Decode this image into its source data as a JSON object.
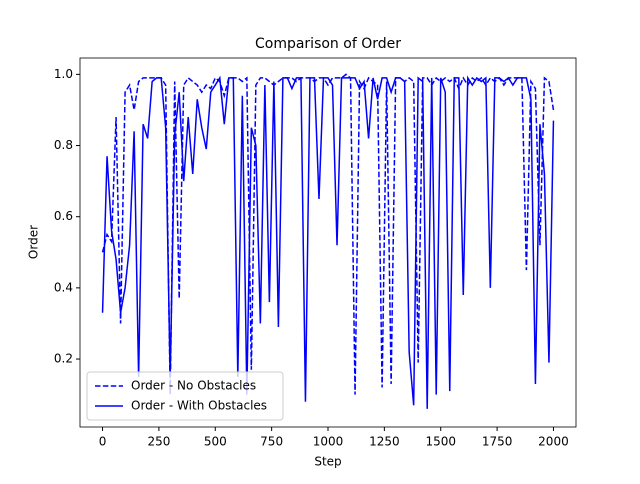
{
  "chart_data": {
    "type": "line",
    "title": "Comparison of Order",
    "x_label": "Step",
    "y_label": "Order",
    "x": [
      0,
      20,
      40,
      60,
      80,
      100,
      120,
      140,
      160,
      180,
      200,
      220,
      240,
      260,
      280,
      300,
      320,
      340,
      360,
      380,
      400,
      420,
      440,
      460,
      480,
      500,
      520,
      540,
      560,
      580,
      600,
      620,
      640,
      660,
      680,
      700,
      720,
      740,
      760,
      780,
      800,
      820,
      840,
      860,
      880,
      900,
      920,
      940,
      960,
      980,
      1000,
      1020,
      1040,
      1060,
      1080,
      1100,
      1120,
      1140,
      1160,
      1180,
      1200,
      1220,
      1240,
      1260,
      1280,
      1300,
      1320,
      1340,
      1360,
      1380,
      1400,
      1420,
      1440,
      1460,
      1480,
      1500,
      1520,
      1540,
      1560,
      1580,
      1600,
      1620,
      1640,
      1660,
      1680,
      1700,
      1720,
      1740,
      1760,
      1780,
      1800,
      1820,
      1840,
      1860,
      1880,
      1900,
      1920,
      1940,
      1960,
      1980,
      2000
    ],
    "series": [
      {
        "name": "Order - No Obstacles",
        "color": "#0000ff",
        "dash": true,
        "values": [
          0.5,
          0.55,
          0.53,
          0.88,
          0.3,
          0.95,
          0.97,
          0.9,
          0.98,
          0.99,
          0.99,
          0.99,
          0.99,
          0.99,
          0.97,
          0.1,
          0.98,
          0.37,
          0.97,
          0.99,
          0.98,
          0.97,
          0.95,
          0.97,
          0.96,
          0.99,
          0.98,
          0.94,
          0.99,
          0.99,
          0.99,
          0.98,
          0.99,
          0.17,
          0.97,
          0.99,
          0.99,
          0.98,
          0.97,
          0.98,
          0.99,
          0.99,
          0.99,
          0.98,
          0.99,
          0.99,
          0.99,
          0.98,
          0.99,
          0.99,
          0.97,
          0.99,
          0.99,
          0.99,
          1.0,
          0.99,
          0.1,
          0.98,
          0.96,
          0.99,
          0.98,
          0.97,
          0.12,
          0.98,
          0.13,
          0.99,
          0.99,
          0.98,
          0.99,
          0.98,
          0.19,
          0.99,
          0.99,
          0.97,
          0.99,
          0.98,
          0.99,
          0.98,
          0.99,
          0.96,
          0.99,
          0.97,
          0.99,
          0.98,
          0.99,
          0.97,
          0.99,
          0.98,
          0.99,
          0.97,
          0.99,
          0.99,
          0.99,
          0.99,
          0.45,
          0.98,
          0.96,
          0.52,
          0.99,
          0.98,
          0.9
        ]
      },
      {
        "name": "Order - With Obstacles",
        "color": "#0000ff",
        "dash": false,
        "values": [
          0.33,
          0.77,
          0.56,
          0.48,
          0.33,
          0.4,
          0.52,
          0.84,
          0.15,
          0.86,
          0.82,
          0.98,
          0.99,
          0.99,
          0.85,
          0.15,
          0.83,
          0.95,
          0.7,
          0.88,
          0.72,
          0.93,
          0.85,
          0.79,
          0.95,
          0.97,
          0.99,
          0.86,
          0.99,
          0.99,
          0.15,
          0.94,
          0.1,
          0.85,
          0.8,
          0.3,
          0.97,
          0.36,
          0.98,
          0.29,
          0.99,
          0.99,
          0.96,
          0.99,
          0.99,
          0.08,
          0.99,
          0.99,
          0.65,
          0.99,
          0.99,
          0.97,
          0.52,
          0.99,
          0.99,
          0.99,
          0.99,
          0.96,
          0.98,
          0.82,
          0.99,
          0.93,
          0.99,
          0.99,
          0.95,
          0.99,
          0.99,
          0.98,
          0.22,
          0.07,
          0.99,
          0.98,
          0.06,
          0.99,
          0.1,
          0.99,
          0.95,
          0.11,
          0.99,
          0.99,
          0.38,
          0.99,
          0.97,
          0.99,
          0.98,
          0.99,
          0.4,
          0.99,
          0.99,
          0.98,
          0.99,
          0.97,
          0.99,
          0.99,
          0.99,
          0.93,
          0.13,
          0.86,
          0.72,
          0.19,
          0.87
        ]
      }
    ],
    "xlim": [
      -100,
      2100
    ],
    "ylim": [
      0.009,
      1.046
    ],
    "xticks": [
      0,
      250,
      500,
      750,
      1000,
      1250,
      1500,
      1750,
      2000
    ],
    "yticks": [
      0.2,
      0.4,
      0.6,
      0.8,
      {
        "value": 1,
        "label": "1.0"
      }
    ],
    "legend": "lower left",
    "grid": false
  }
}
